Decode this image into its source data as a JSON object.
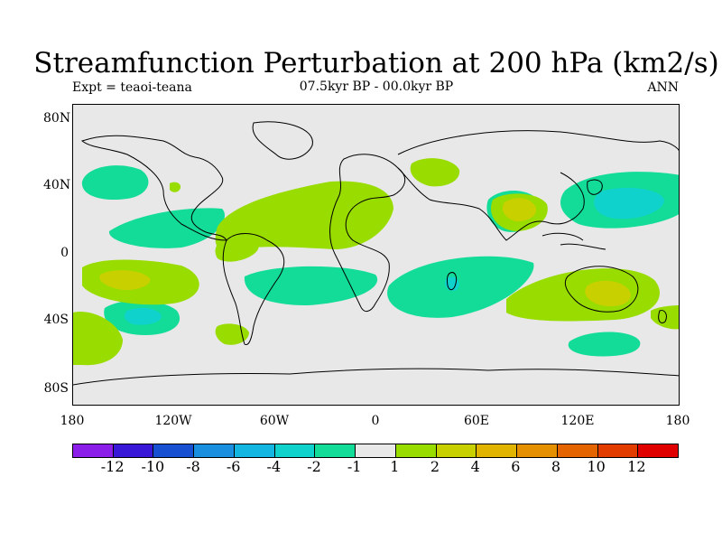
{
  "title": "Streamfunction Perturbation at 200 hPa (km2/s)",
  "subtitle_left": "Expt = teaoi-teana",
  "subtitle_center": "07.5kyr BP - 00.0kyr BP",
  "subtitle_right": "ANN",
  "lat_labels": [
    "80N",
    "40N",
    "0",
    "40S",
    "80S"
  ],
  "lon_labels": [
    "180",
    "120W",
    "60W",
    "0",
    "60E",
    "120E",
    "180"
  ],
  "colorbar": {
    "colors": [
      "#8b1ee8",
      "#3a18d8",
      "#1750d0",
      "#1a8fe0",
      "#12b6e0",
      "#10d2cc",
      "#12dc98",
      "#e8e8e8",
      "#98dc00",
      "#c8d000",
      "#e0b400",
      "#e49000",
      "#e46400",
      "#e23c00",
      "#e00000"
    ],
    "labels": [
      "-12",
      "-10",
      "-8",
      "-6",
      "-4",
      "-2",
      "-1",
      "1",
      "2",
      "4",
      "6",
      "8",
      "10",
      "12"
    ]
  },
  "colors": {
    "background": "#e8e8e8",
    "negative_light": "#12dc98",
    "negative_mid": "#10d2cc",
    "positive_light": "#98dc00",
    "positive_mid": "#c8d000"
  }
}
